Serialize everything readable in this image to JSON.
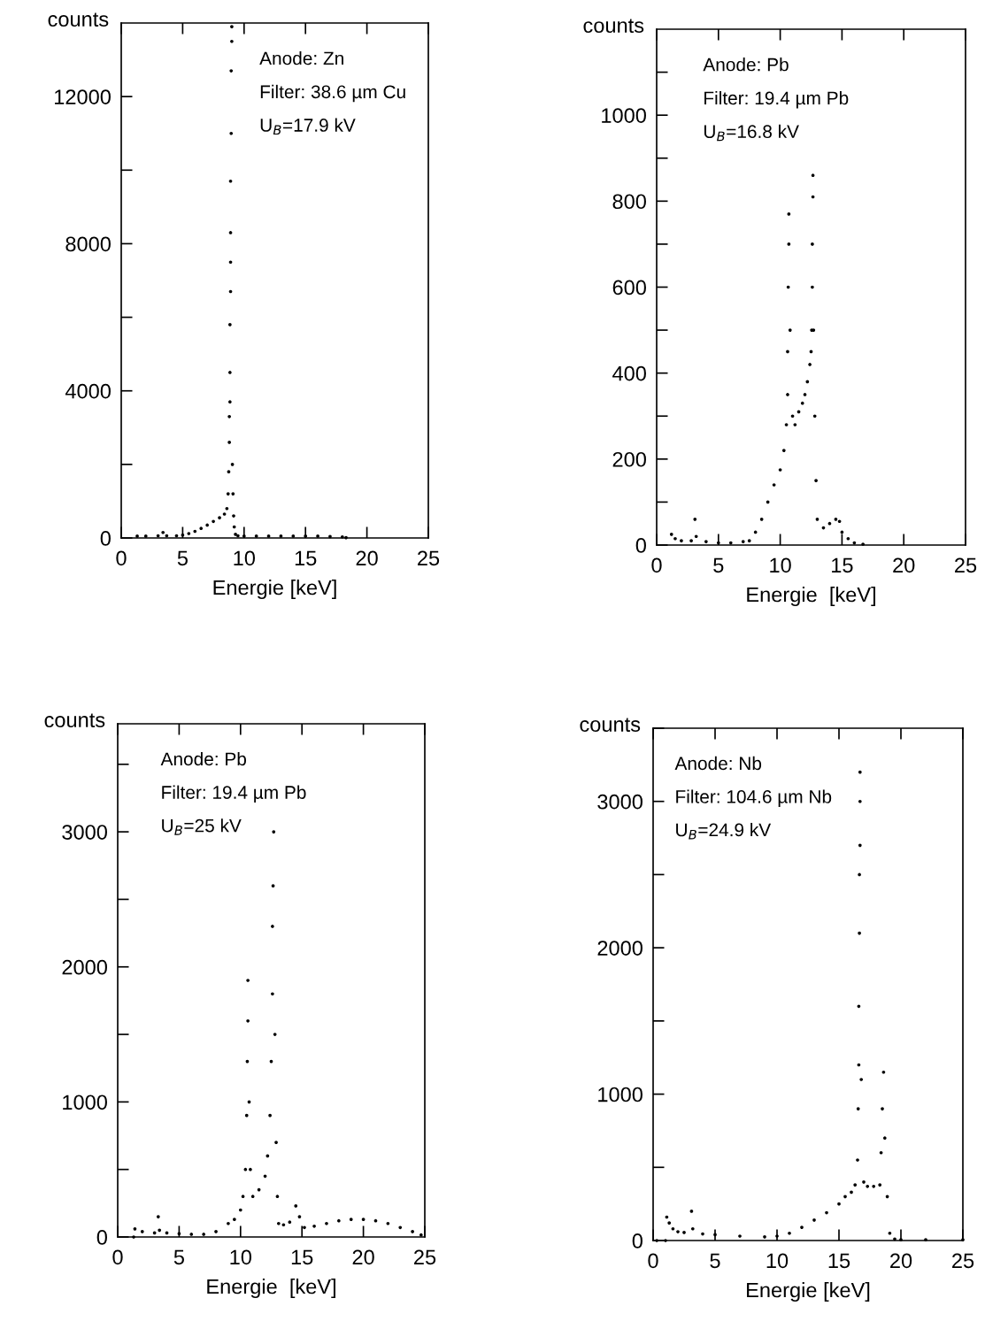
{
  "chart_data": [
    {
      "type": "scatter",
      "xlabel": "Energie [keV]",
      "ylabel": "counts",
      "annotations": [
        "Anode: Zn",
        "Filter: 38.6 µm Cu",
        "U$_{B}$=17.9 kV"
      ],
      "color": "#000000",
      "marker": "circle",
      "x": [
        1.3,
        2,
        3,
        3.4,
        3.7,
        4.5,
        5,
        5.5,
        6,
        6.5,
        7,
        7.5,
        8,
        8.4,
        8.6,
        8.7,
        8.75,
        8.8,
        8.8,
        8.85,
        8.85,
        8.85,
        8.9,
        8.9,
        8.9,
        8.9,
        8.95,
        8.95,
        9.0,
        9.0,
        9.05,
        9.1,
        9.15,
        9.2,
        9.3,
        9.5,
        10,
        11,
        12,
        13,
        14,
        15,
        16,
        17,
        18,
        18.3
      ],
      "values": [
        50,
        50,
        60,
        150,
        60,
        60,
        80,
        120,
        180,
        260,
        350,
        450,
        550,
        650,
        800,
        1200,
        1800,
        2600,
        3300,
        3700,
        4500,
        5800,
        6700,
        7500,
        8300,
        9700,
        11000,
        12700,
        13500,
        13900,
        2000,
        1200,
        600,
        300,
        100,
        60,
        50,
        50,
        50,
        50,
        50,
        50,
        50,
        40,
        30,
        10
      ],
      "xlim": [
        0,
        25
      ],
      "ylim": [
        0,
        14000
      ],
      "xticks": [
        0,
        5,
        10,
        15,
        20,
        25
      ],
      "yticks": [
        0,
        {
          "value": 2000,
          "label": null
        },
        4000,
        {
          "value": 6000,
          "label": null
        },
        8000,
        {
          "value": 10000,
          "label": null
        },
        12000
      ]
    },
    {
      "type": "scatter",
      "xlabel": "Energie  [keV]",
      "ylabel": "counts",
      "annotations": [
        "Anode: Pb",
        "Filter: 19.4 µm Pb",
        "U$_{B}$=16.8 kV"
      ],
      "color": "#000000",
      "marker": "circle",
      "x": [
        1.2,
        1.5,
        2,
        2.8,
        3.1,
        3.2,
        4,
        5,
        6,
        7,
        7.5,
        8,
        8.5,
        9,
        9.5,
        10,
        10.3,
        10.5,
        10.6,
        10.6,
        10.65,
        10.7,
        10.7,
        10.8,
        11,
        11.2,
        11.5,
        11.8,
        12,
        12.2,
        12.4,
        12.5,
        12.55,
        12.6,
        12.6,
        12.65,
        12.65,
        12.7,
        12.8,
        12.9,
        13,
        13.5,
        14,
        14.5,
        14.8,
        15,
        15.5,
        16,
        16.7
      ],
      "values": [
        25,
        15,
        10,
        10,
        60,
        20,
        8,
        5,
        5,
        8,
        10,
        30,
        60,
        100,
        140,
        175,
        220,
        280,
        350,
        450,
        600,
        700,
        770,
        500,
        300,
        280,
        310,
        330,
        350,
        380,
        420,
        450,
        500,
        600,
        700,
        810,
        860,
        500,
        300,
        150,
        60,
        40,
        50,
        60,
        55,
        30,
        15,
        5,
        2
      ],
      "xlim": [
        0,
        25
      ],
      "ylim": [
        0,
        1200
      ],
      "xticks": [
        0,
        5,
        10,
        15,
        20,
        25
      ],
      "yticks": [
        0,
        {
          "value": 100,
          "label": null
        },
        200,
        {
          "value": 300,
          "label": null
        },
        400,
        {
          "value": 500,
          "label": null
        },
        600,
        {
          "value": 700,
          "label": null
        },
        800,
        {
          "value": 900,
          "label": null
        },
        1000,
        {
          "value": 1100,
          "label": null
        }
      ]
    },
    {
      "type": "scatter",
      "xlabel": "Energie  [keV]",
      "ylabel": "counts",
      "annotations": [
        "Anode: Pb",
        "Filter: 19.4 µm Pb",
        "U$_{B}$=25 kV"
      ],
      "color": "#000000",
      "marker": "circle",
      "x": [
        1.3,
        1.4,
        2,
        3,
        3.3,
        3.4,
        4,
        5,
        6,
        7,
        8,
        9,
        9.5,
        10,
        10.2,
        10.4,
        10.5,
        10.55,
        10.6,
        10.6,
        10.7,
        10.8,
        11,
        11.5,
        12,
        12.2,
        12.4,
        12.5,
        12.6,
        12.6,
        12.65,
        12.7,
        12.8,
        12.9,
        13,
        13.1,
        13.5,
        14,
        14.5,
        14.8,
        15.2,
        16,
        17,
        18,
        19,
        20,
        21,
        22,
        23,
        24,
        24.7
      ],
      "values": [
        0,
        60,
        40,
        30,
        150,
        50,
        30,
        25,
        20,
        20,
        40,
        100,
        130,
        200,
        300,
        500,
        900,
        1300,
        1600,
        1900,
        1000,
        500,
        300,
        350,
        450,
        600,
        900,
        1300,
        1800,
        2300,
        2600,
        3000,
        1500,
        700,
        300,
        100,
        90,
        110,
        230,
        150,
        70,
        80,
        100,
        120,
        130,
        130,
        120,
        100,
        70,
        40,
        15
      ],
      "xlim": [
        0,
        25
      ],
      "ylim": [
        0,
        3800
      ],
      "xticks": [
        0,
        5,
        10,
        15,
        20,
        25
      ],
      "yticks": [
        0,
        {
          "value": 500,
          "label": null
        },
        1000,
        {
          "value": 1500,
          "label": null
        },
        2000,
        {
          "value": 2500,
          "label": null
        },
        3000,
        {
          "value": 3500,
          "label": null
        }
      ]
    },
    {
      "type": "scatter",
      "xlabel": "Energie [keV]",
      "ylabel": "counts",
      "annotations": [
        "Anode: Nb",
        "Filter: 104.6 µm Nb",
        "U$_{B}$=24.9 kV"
      ],
      "color": "#000000",
      "marker": "circle",
      "x": [
        0.3,
        1,
        1.1,
        1.3,
        1.6,
        2,
        2.5,
        3.1,
        3.2,
        4,
        5,
        7,
        9,
        10,
        11,
        12,
        13,
        14,
        15,
        15.5,
        16,
        16.3,
        16.5,
        16.55,
        16.6,
        16.6,
        16.65,
        16.65,
        16.7,
        16.7,
        16.7,
        16.8,
        17,
        17.3,
        17.8,
        18.3,
        18.4,
        18.5,
        18.6,
        18.7,
        18.9,
        19.1,
        19.5,
        20,
        22,
        25
      ],
      "values": [
        0,
        0,
        160,
        120,
        80,
        60,
        55,
        200,
        80,
        45,
        40,
        30,
        25,
        30,
        50,
        90,
        140,
        190,
        250,
        300,
        330,
        380,
        550,
        900,
        1200,
        1600,
        2100,
        2500,
        2700,
        3000,
        3200,
        1100,
        400,
        370,
        370,
        380,
        600,
        900,
        1150,
        700,
        300,
        50,
        10,
        5,
        5,
        5
      ],
      "xlim": [
        0,
        25
      ],
      "ylim": [
        0,
        3500
      ],
      "xticks": [
        0,
        5,
        10,
        15,
        20,
        25
      ],
      "yticks": [
        0,
        {
          "value": 500,
          "label": null
        },
        1000,
        {
          "value": 1500,
          "label": null
        },
        2000,
        {
          "value": 2500,
          "label": null
        },
        3000,
        {
          "value": 3500,
          "label": null
        }
      ]
    }
  ]
}
